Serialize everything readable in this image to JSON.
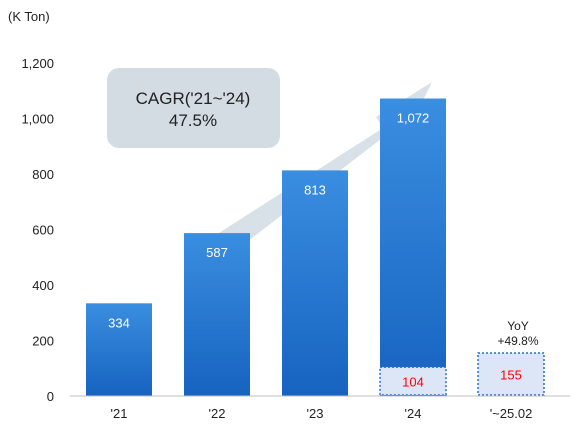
{
  "chart_data": {
    "type": "bar",
    "unit_label": "(K Ton)",
    "categories": [
      "'21",
      "'22",
      "'23",
      "'24",
      "'~25.02"
    ],
    "values": [
      334,
      587,
      813,
      1072,
      null
    ],
    "value_labels": [
      "334",
      "587",
      "813",
      "1,072",
      ""
    ],
    "highlight_values": [
      null,
      null,
      null,
      104,
      155
    ],
    "highlight_labels": [
      "",
      "",
      "",
      "104",
      "155"
    ],
    "yticks": [
      "0",
      "200",
      "400",
      "600",
      "800",
      "1,000",
      "1,200"
    ],
    "ylim": [
      0,
      1200
    ],
    "grid": false,
    "cagr_label": "CAGR('21~'24)",
    "cagr_value": "47.5%",
    "yoy_label": "YoY",
    "yoy_value": "+49.8%",
    "colors": {
      "bar_top": "#3a8ee0",
      "bar_bottom": "#1663c0",
      "highlight_fill": "#dde6f7",
      "highlight_border": "#2a6fcb",
      "highlight_text": "#ff0000",
      "arrow": "#d9e1e8",
      "callout_fill": "#d3dce3"
    }
  }
}
